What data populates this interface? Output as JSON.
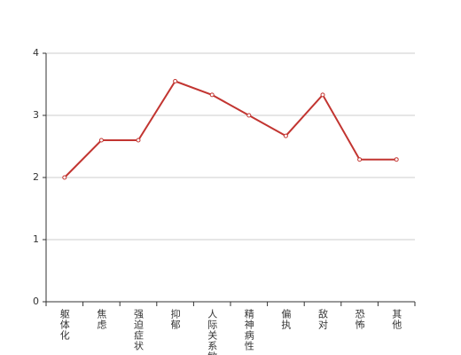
{
  "chart_data": {
    "type": "line",
    "categories": [
      "躯体化",
      "焦虑",
      "强迫症状",
      "抑郁",
      "人际关系敏感",
      "精神病性",
      "偏执",
      "敌对",
      "恐怖",
      "其他"
    ],
    "series": [
      {
        "color": "#c23531",
        "values": [
          2,
          2.6,
          2.6,
          3.55,
          3.33,
          3.0,
          2.67,
          3.33,
          2.29,
          2.29
        ]
      }
    ],
    "ylim": [
      0,
      4
    ],
    "yticks": [
      0,
      1,
      2,
      3,
      4
    ],
    "grid": true
  }
}
